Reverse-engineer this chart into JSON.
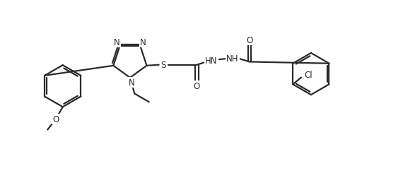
{
  "bg_color": "#ffffff",
  "line_color": "#2a2a2a",
  "line_width": 1.6,
  "font_size": 8.5,
  "figsize": [
    5.7,
    2.53
  ],
  "dpi": 100,
  "xlim": [
    -0.3,
    10.3
  ],
  "ylim": [
    -0.2,
    4.46
  ]
}
